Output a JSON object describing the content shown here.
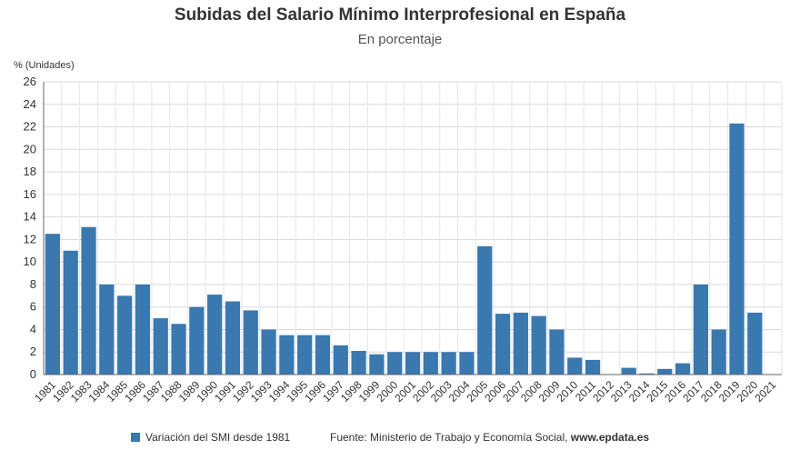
{
  "chart_data": {
    "type": "bar",
    "title": "Subidas del Salario Mínimo Interprofesional en España",
    "subtitle": "En porcentaje",
    "ylabel": "% (Unidades)",
    "xlabel": "",
    "ylim": [
      0,
      26
    ],
    "yticks": [
      0,
      2,
      4,
      6,
      8,
      10,
      12,
      14,
      16,
      18,
      20,
      22,
      24,
      26
    ],
    "grid": true,
    "legend_position": "bottom",
    "categories": [
      "1981",
      "1982",
      "1983",
      "1984",
      "1985",
      "1986",
      "1987",
      "1988",
      "1989",
      "1990",
      "1991",
      "1992",
      "1993",
      "1994",
      "1995",
      "1996",
      "1997",
      "1998",
      "1999",
      "2000",
      "2001",
      "2002",
      "2003",
      "2004",
      "2005",
      "2006",
      "2007",
      "2008",
      "2009",
      "2010",
      "2011",
      "2012",
      "2013",
      "2014",
      "2015",
      "2016",
      "2017",
      "2018",
      "2019",
      "2020",
      "2021"
    ],
    "series": [
      {
        "name": "Variación del SMI desde 1981",
        "color": "#3a78b0",
        "values": [
          12.5,
          11.0,
          13.1,
          8.0,
          7.0,
          8.0,
          5.0,
          4.5,
          6.0,
          7.1,
          6.5,
          5.7,
          4.0,
          3.5,
          3.5,
          3.5,
          2.6,
          2.1,
          1.8,
          2.0,
          2.0,
          2.0,
          2.0,
          2.0,
          11.4,
          5.4,
          5.5,
          5.2,
          4.0,
          1.5,
          1.3,
          0.0,
          0.6,
          0.1,
          0.5,
          1.0,
          8.0,
          4.0,
          22.3,
          5.5,
          0.0
        ]
      }
    ]
  },
  "footer": {
    "legend_label": "Variación del SMI desde 1981",
    "source_prefix": "Fuente: Ministerio de Trabajo y Economía Social, ",
    "source_site": "www.epdata.es"
  }
}
